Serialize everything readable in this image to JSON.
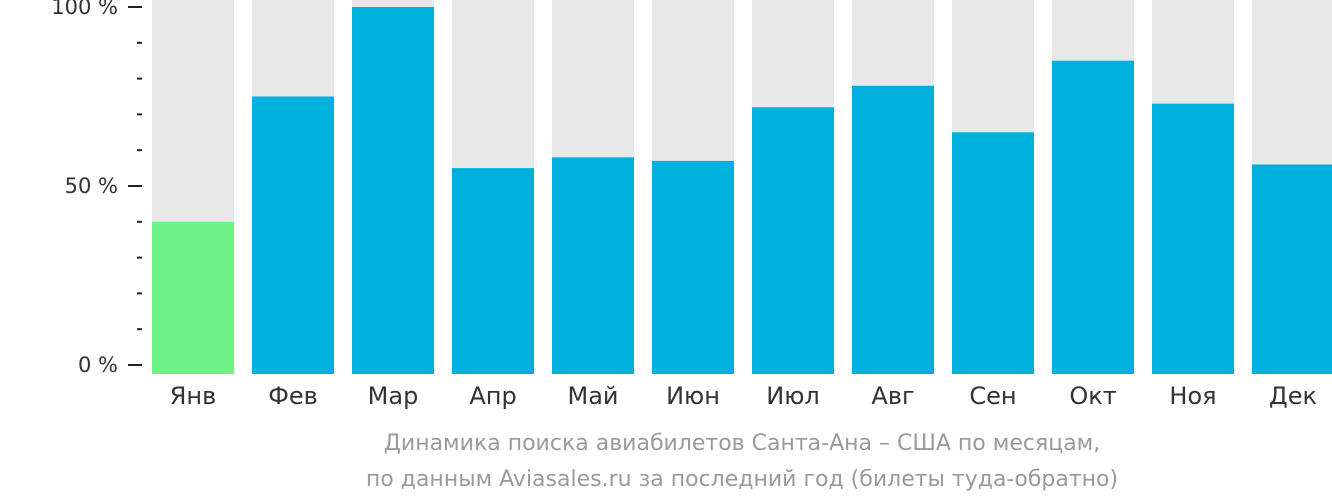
{
  "chart_data": {
    "type": "bar",
    "categories": [
      "Янв",
      "Фев",
      "Мар",
      "Апр",
      "Май",
      "Июн",
      "Июл",
      "Авг",
      "Сен",
      "Окт",
      "Ноя",
      "Дек"
    ],
    "values": [
      40,
      75,
      100,
      55,
      58,
      57,
      72,
      78,
      65,
      85,
      73,
      56
    ],
    "highlight_index": 0,
    "ylim": [
      0,
      100
    ],
    "yticks": [
      {
        "value": 0,
        "label": "0 %"
      },
      {
        "value": 50,
        "label": "50 %"
      },
      {
        "value": 100,
        "label": "100 %"
      }
    ],
    "minor_ytick_step": 10,
    "caption_line1": "Динамика поиска авиабилетов Санта-Ана – США по месяцам,",
    "caption_line2": "по данным Aviasales.ru за последний год (билеты туда-обратно)",
    "colors": {
      "bar": "#00b1dd",
      "highlight": "#6cf386",
      "background_bar": "#e8e8e9",
      "axis": "#222222"
    }
  }
}
